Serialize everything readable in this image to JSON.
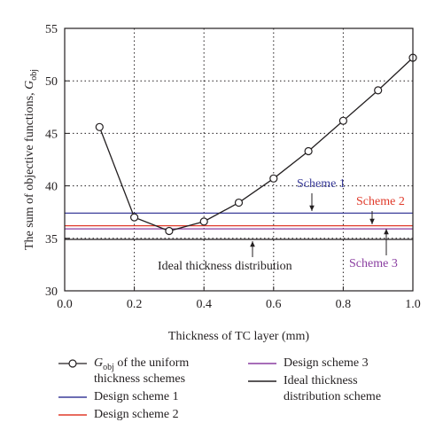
{
  "chart_data": {
    "type": "line",
    "xlabel": "Thickness of TC layer (mm)",
    "ylabel_main": "The sum of objective functions, ",
    "ylabel_G": "G",
    "ylabel_sub": "obj",
    "xlim": [
      0.0,
      1.0
    ],
    "ylim": [
      30,
      55
    ],
    "xticks": [
      "0.0",
      "0.2",
      "0.4",
      "0.6",
      "0.8",
      "1.0"
    ],
    "yticks": [
      "30",
      "35",
      "40",
      "45",
      "50",
      "55"
    ],
    "grid": "dotted",
    "series": [
      {
        "name": "G_obj of the uniform thickness schemes",
        "x": [
          0.1,
          0.2,
          0.3,
          0.4,
          0.5,
          0.6,
          0.7,
          0.8,
          0.9,
          1.0
        ],
        "y": [
          45.6,
          37.0,
          35.7,
          36.6,
          38.4,
          40.7,
          43.3,
          46.2,
          49.1,
          52.2
        ],
        "color": "#231f20"
      }
    ],
    "hlines": [
      {
        "name": "Design scheme 1",
        "y": 37.4,
        "color": "#3b3d9a"
      },
      {
        "name": "Design scheme 2",
        "y": 36.2,
        "color": "#e03a2a"
      },
      {
        "name": "Design scheme 3",
        "y": 35.9,
        "color": "#8a3da0"
      },
      {
        "name": "Ideal thickness distribution scheme",
        "y": 34.9,
        "color": "#231f20"
      }
    ],
    "annotations": [
      {
        "text": "Scheme 1",
        "color": "#3b3d9a"
      },
      {
        "text": "Scheme 2",
        "color": "#e03a2a"
      },
      {
        "text": "Scheme 3",
        "color": "#8a3da0"
      },
      {
        "text": "Ideal thickness distribution",
        "color": "#231f20"
      }
    ]
  },
  "legend": {
    "items": [
      {
        "pre": "G",
        "sub": "obj",
        "line1": " of the uniform",
        "line2": "thickness schemes"
      },
      {
        "line1": "Design scheme 1"
      },
      {
        "line1": "Design scheme 2"
      },
      {
        "line1": "Design scheme 3"
      },
      {
        "line1": "Ideal thickness",
        "line2": "distribution scheme"
      }
    ]
  }
}
